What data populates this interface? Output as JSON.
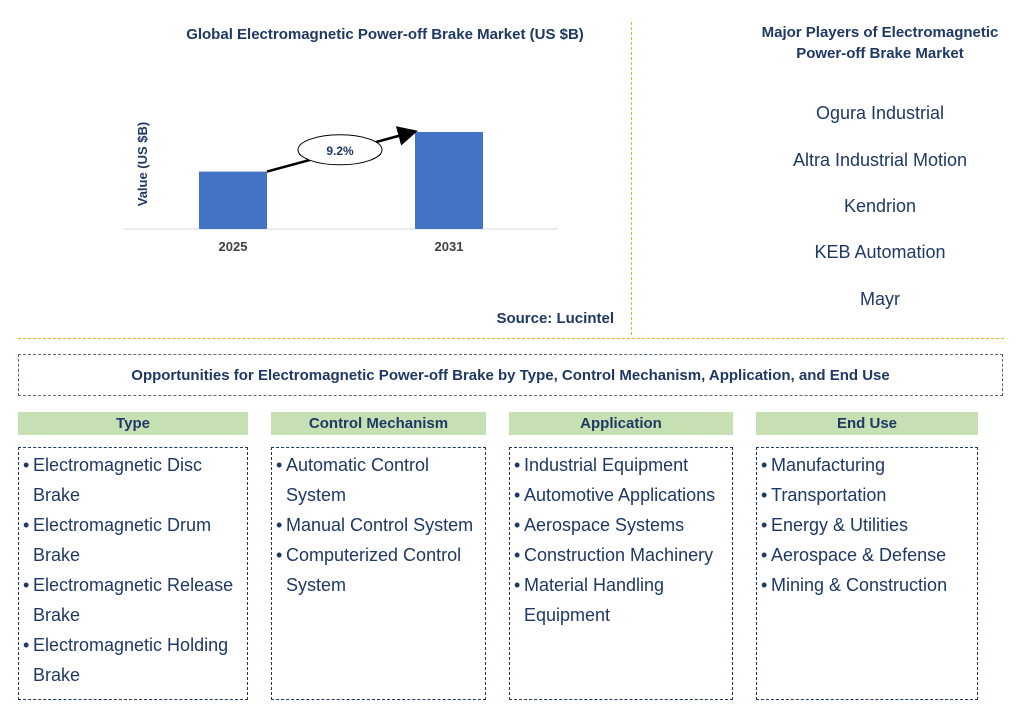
{
  "chart_data": {
    "type": "bar",
    "title": "Global Electromagnetic Power-off Brake Market (US $B)",
    "ylabel": "Value (US $B)",
    "xlabel": "",
    "categories": [
      "2025",
      "2031"
    ],
    "values": [
      1.0,
      1.69
    ],
    "annotation": "9.2%",
    "bar_color": "#4472c4",
    "source": "Source: Lucintel"
  },
  "players": {
    "title": "Major Players of Electromagnetic Power-off Brake Market",
    "items": [
      "Ogura Industrial",
      "Altra Industrial Motion",
      "Kendrion",
      "KEB Automation",
      "Mayr"
    ]
  },
  "opportunities": {
    "title": "Opportunities for Electromagnetic Power-off Brake by Type, Control Mechanism, Application, and End Use",
    "categories": [
      {
        "name": "Type",
        "items": [
          "Electromagnetic Disc Brake",
          "Electromagnetic Drum Brake",
          "Electromagnetic Release Brake",
          "Electromagnetic Holding Brake"
        ]
      },
      {
        "name": "Control Mechanism",
        "items": [
          "Automatic Control System",
          "Manual Control System",
          "Computerized Control System"
        ]
      },
      {
        "name": "Application",
        "items": [
          "Industrial Equipment",
          "Automotive Applications",
          "Aerospace Systems",
          "Construction Machinery",
          "Material Handling Equipment"
        ]
      },
      {
        "name": "End Use",
        "items": [
          "Manufacturing",
          "Transportation",
          "Energy & Utilities",
          "Aerospace & Defense",
          "Mining & Construction"
        ]
      }
    ]
  }
}
